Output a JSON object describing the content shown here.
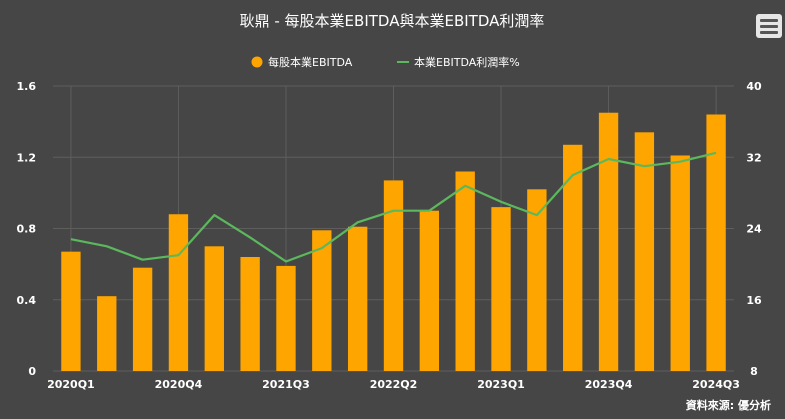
{
  "chart_data": {
    "type": "bar+line",
    "title": "耿鼎 - 每股本業EBITDA與本業EBITDA利潤率",
    "categories": [
      "2020Q1",
      "2020Q2",
      "2020Q3",
      "2020Q4",
      "2021Q1",
      "2021Q2",
      "2021Q3",
      "2021Q4",
      "2022Q1",
      "2022Q2",
      "2022Q3",
      "2022Q4",
      "2023Q1",
      "2023Q2",
      "2023Q3",
      "2023Q4",
      "2024Q1",
      "2024Q2",
      "2024Q3"
    ],
    "x_tick_labels": [
      "2020Q1",
      "2020Q4",
      "2021Q3",
      "2022Q2",
      "2023Q1",
      "2023Q4",
      "2024Q3"
    ],
    "series": [
      {
        "name": "每股本業EBITDA",
        "type": "bar",
        "axis": "left",
        "color": "#ffa500",
        "values": [
          0.67,
          0.42,
          0.58,
          0.88,
          0.7,
          0.64,
          0.59,
          0.79,
          0.81,
          1.07,
          0.9,
          1.12,
          0.92,
          1.02,
          1.27,
          1.45,
          1.34,
          1.21,
          1.44
        ]
      },
      {
        "name": "本業EBITDA利潤率%",
        "type": "line",
        "axis": "right",
        "color": "#5cb85c",
        "values": [
          22.8,
          22.0,
          20.5,
          21.0,
          25.5,
          23.0,
          20.3,
          21.8,
          24.7,
          26.0,
          26.0,
          28.8,
          27.0,
          25.5,
          30.0,
          31.8,
          31.0,
          31.5,
          32.5
        ]
      }
    ],
    "y_left": {
      "min": 0,
      "max": 1.6,
      "ticks": [
        "0",
        "0.4",
        "0.8",
        "1.2",
        "1.6"
      ]
    },
    "y_right": {
      "min": 8,
      "max": 40,
      "ticks": [
        "8",
        "16",
        "24",
        "32",
        "40"
      ]
    },
    "grid": true,
    "legend_position": "top-center"
  },
  "source_text": "資料來源: 優分析",
  "menu_icon": "hamburger-menu-icon"
}
